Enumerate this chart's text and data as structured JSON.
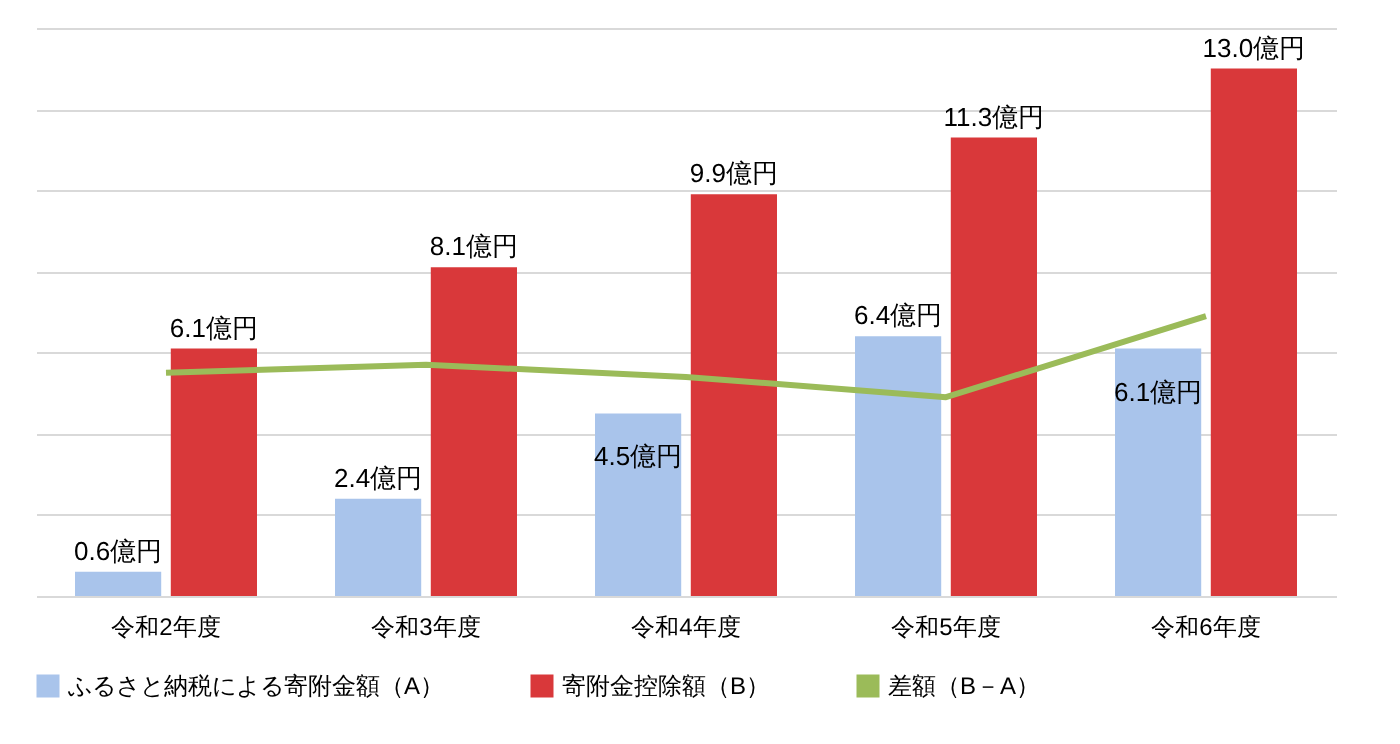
{
  "chart_data": {
    "type": "bar",
    "categories": [
      "令和2年度",
      "令和3年度",
      "令和4年度",
      "令和5年度",
      "令和6年度"
    ],
    "series": [
      {
        "name": "ふるさと納税による寄附金額（A）",
        "color": "#a9c4eb",
        "values": [
          0.6,
          2.4,
          4.5,
          6.4,
          6.1
        ],
        "value_labels": [
          "0.6億円",
          "2.4億円",
          "4.5億円",
          "6.4億円",
          "6.1億円"
        ]
      },
      {
        "name": "寄附金控除額（B）",
        "color": "#d9383a",
        "values": [
          6.1,
          8.1,
          9.9,
          11.3,
          13.0
        ],
        "value_labels": [
          "6.1億円",
          "8.1億円",
          "9.9億円",
          "11.3億円",
          "13.0億円"
        ]
      },
      {
        "name": "差額（B－A）",
        "type": "line",
        "color": "#9bbb59",
        "values": [
          5.5,
          5.7,
          5.4,
          4.9,
          6.9
        ]
      }
    ],
    "ylim": [
      0,
      14
    ],
    "yticks": [
      {
        "value": 0,
        "label": null
      },
      {
        "value": 2,
        "label": null
      },
      {
        "value": 4,
        "label": null
      },
      {
        "value": 6,
        "label": null
      },
      {
        "value": 8,
        "label": null
      },
      {
        "value": 10,
        "label": null
      },
      {
        "value": 12,
        "label": null
      },
      {
        "value": 14,
        "label": null
      }
    ],
    "grid": "y",
    "tick_labels": "x",
    "legend": "bottom"
  }
}
